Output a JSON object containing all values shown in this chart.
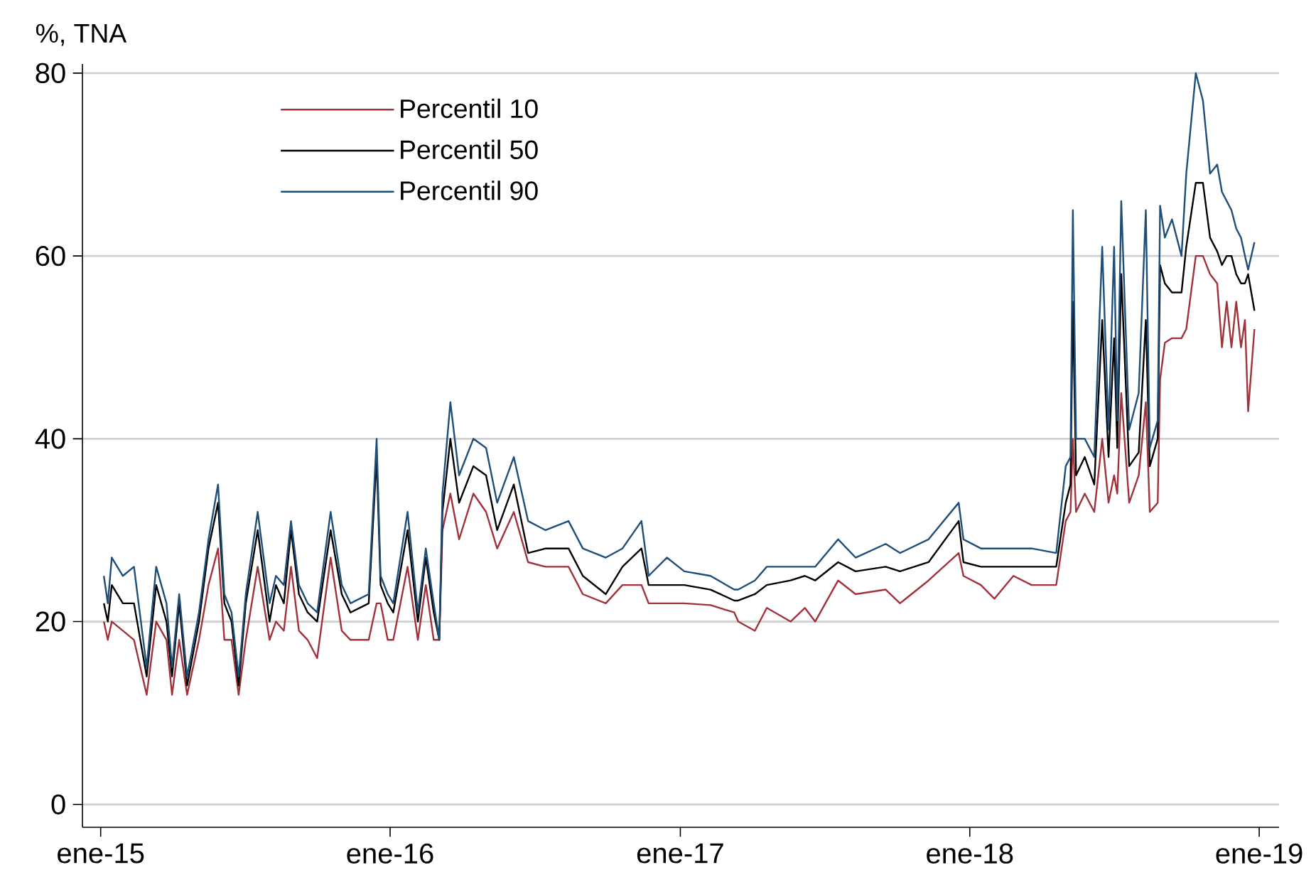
{
  "chart_data": {
    "type": "line",
    "ylabel": "%, TNA",
    "x": [
      "2015-01-05",
      "2015-01-10",
      "2015-01-15",
      "2015-01-29",
      "2015-02-12",
      "2015-02-28",
      "2015-03-12",
      "2015-03-25",
      "2015-04-01",
      "2015-04-10",
      "2015-04-20",
      "2015-05-05",
      "2015-05-17",
      "2015-05-29",
      "2015-06-06",
      "2015-06-15",
      "2015-06-24",
      "2015-07-03",
      "2015-07-18",
      "2015-08-02",
      "2015-08-10",
      "2015-08-20",
      "2015-08-29",
      "2015-09-08",
      "2015-09-19",
      "2015-10-01",
      "2015-10-18",
      "2015-11-01",
      "2015-11-12",
      "2015-12-05",
      "2015-12-15",
      "2015-12-20",
      "2015-12-29",
      "2016-01-05",
      "2016-01-23",
      "2016-02-05",
      "2016-02-15",
      "2016-02-25",
      "2016-03-03",
      "2016-03-07",
      "2016-03-17",
      "2016-03-28",
      "2016-04-15",
      "2016-05-01",
      "2016-05-15",
      "2016-06-05",
      "2016-06-23",
      "2016-07-15",
      "2016-08-13",
      "2016-08-31",
      "2016-09-29",
      "2016-10-20",
      "2016-11-13",
      "2016-11-22",
      "2016-12-15",
      "2017-01-06",
      "2017-02-08",
      "2017-03-10",
      "2017-03-15",
      "2017-04-05",
      "2017-04-20",
      "2017-05-20",
      "2017-06-07",
      "2017-06-20",
      "2017-07-19",
      "2017-08-10",
      "2017-09-17",
      "2017-10-05",
      "2017-11-10",
      "2017-12-18",
      "2017-12-24",
      "2018-01-15",
      "2018-02-01",
      "2018-02-25",
      "2018-03-20",
      "2018-04-20",
      "2018-05-02",
      "2018-05-08",
      "2018-05-11",
      "2018-05-15",
      "2018-05-26",
      "2018-06-07",
      "2018-06-17",
      "2018-06-25",
      "2018-07-02",
      "2018-07-06",
      "2018-07-11",
      "2018-07-21",
      "2018-08-02",
      "2018-08-11",
      "2018-08-16",
      "2018-08-26",
      "2018-08-29",
      "2018-09-04",
      "2018-09-13",
      "2018-09-25",
      "2018-10-01",
      "2018-10-13",
      "2018-10-22",
      "2018-10-31",
      "2018-11-09",
      "2018-11-15",
      "2018-11-21",
      "2018-11-27",
      "2018-12-03",
      "2018-12-09",
      "2018-12-14",
      "2018-12-18",
      "2018-12-26"
    ],
    "series": [
      {
        "name": "Percentil 10",
        "color": "#a0323c",
        "values": [
          20,
          18,
          20,
          19,
          18,
          12,
          20,
          18,
          12,
          18,
          12,
          18,
          24,
          28,
          18,
          18,
          12,
          18,
          26,
          18,
          20,
          19,
          26,
          19,
          18,
          16,
          27,
          19,
          18,
          18,
          22,
          22,
          18,
          18,
          26,
          18,
          24,
          18,
          18,
          30,
          34,
          29,
          34,
          32,
          28,
          32,
          26.5,
          26,
          26,
          23,
          22,
          24,
          24,
          22,
          22,
          22,
          21.8,
          21,
          20,
          19,
          21.5,
          20,
          21.5,
          20,
          24.5,
          23,
          23.5,
          22,
          24.5,
          27.5,
          25,
          24,
          22.5,
          25,
          24,
          24,
          31,
          32,
          40,
          32,
          34,
          32,
          40,
          33,
          36,
          34,
          45,
          33,
          36,
          44,
          32,
          33,
          46.5,
          50.5,
          51,
          51,
          52,
          60,
          60,
          58,
          57,
          50,
          55,
          50,
          55,
          50,
          53,
          43,
          52
        ]
      },
      {
        "name": "Percentil 50",
        "color": "#000000",
        "values": [
          22,
          20,
          24,
          22,
          22,
          14,
          24,
          20,
          14,
          22,
          13,
          20,
          28,
          33,
          22,
          20,
          13,
          22,
          30,
          20,
          24,
          22,
          30,
          23,
          21,
          20,
          30,
          23,
          21,
          22,
          38,
          24,
          22,
          21,
          30,
          20,
          27,
          21,
          18,
          32,
          40,
          33,
          37,
          36,
          30,
          35,
          27.5,
          28,
          28,
          25,
          23,
          26,
          28,
          24,
          24,
          24,
          23.5,
          22.3,
          22.3,
          23,
          24,
          24.5,
          25,
          24.5,
          26.5,
          25.5,
          26,
          25.5,
          26.5,
          31,
          26.5,
          26,
          26,
          26,
          26,
          26,
          33,
          35,
          55,
          36,
          38,
          35,
          53,
          38,
          51,
          39,
          58,
          37,
          38.5,
          53,
          37,
          40,
          59,
          57,
          56,
          56,
          61,
          68,
          68,
          62,
          60.5,
          59,
          60,
          60,
          58,
          57,
          57,
          58,
          54
        ]
      },
      {
        "name": "Percentil 90",
        "color": "#1f4e79",
        "values": [
          25,
          22,
          27,
          25,
          26,
          15,
          26,
          22,
          15,
          23,
          14,
          21,
          29,
          35,
          23,
          21,
          14,
          23,
          32,
          22,
          25,
          24,
          31,
          24,
          22,
          21,
          32,
          24,
          22,
          23,
          40,
          25,
          23,
          22,
          32,
          21,
          28,
          22,
          18,
          34,
          44,
          36,
          40,
          39,
          33,
          38,
          31,
          30,
          31,
          28,
          27,
          28,
          31,
          25,
          27,
          25.5,
          25,
          23.5,
          23.5,
          24.5,
          26,
          26,
          26,
          26,
          29,
          27,
          28.5,
          27.5,
          29,
          33,
          29,
          28,
          28,
          28,
          28,
          27.5,
          37,
          38,
          65,
          40,
          40,
          38,
          61,
          41,
          61,
          42,
          66,
          41,
          45,
          65,
          39,
          42,
          65.5,
          62,
          64,
          60,
          69,
          80,
          77,
          69,
          70,
          67,
          66,
          65,
          63,
          62,
          60,
          58.5,
          61.5
        ]
      }
    ],
    "xlim": [
      "2014-12-09",
      "2019-01-26"
    ],
    "xticks": [
      {
        "value": "2015-01-01",
        "label": "ene-15"
      },
      {
        "value": "2016-01-01",
        "label": "ene-16"
      },
      {
        "value": "2017-01-01",
        "label": "ene-17"
      },
      {
        "value": "2018-01-01",
        "label": "ene-18"
      },
      {
        "value": "2019-01-01",
        "label": "ene-19"
      }
    ],
    "ylim": [
      -2.5,
      81
    ],
    "yticks": [
      0,
      20,
      40,
      60,
      80
    ],
    "grid": "y",
    "legend": "top left"
  }
}
